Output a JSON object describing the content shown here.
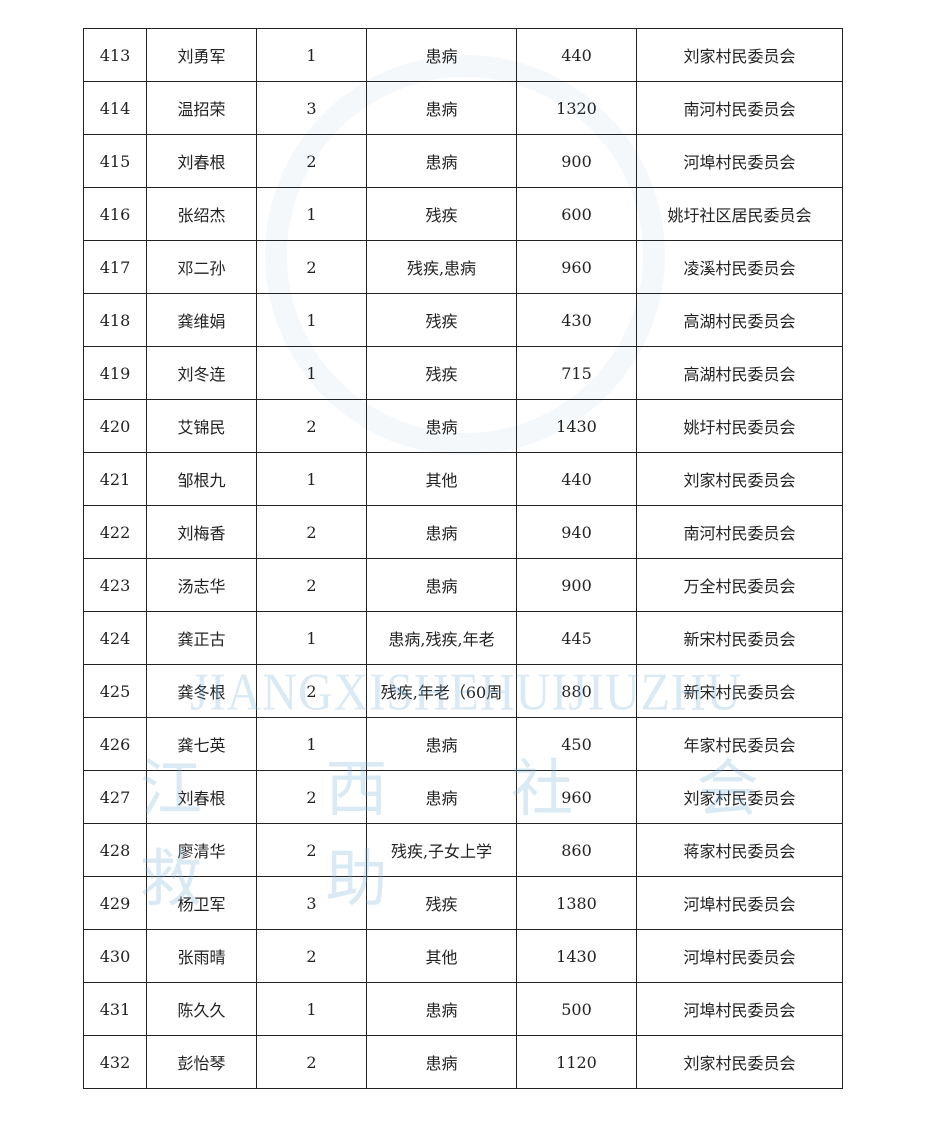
{
  "watermark": {
    "latin": "JIANGXISHEHUIJIUZHU",
    "chinese": "江 西 社 会 救 助"
  },
  "rows": [
    [
      "413",
      "刘勇军",
      "1",
      "患病",
      "440",
      "刘家村民委员会"
    ],
    [
      "414",
      "温招荣",
      "3",
      "患病",
      "1320",
      "南河村民委员会"
    ],
    [
      "415",
      "刘春根",
      "2",
      "患病",
      "900",
      "河埠村民委员会"
    ],
    [
      "416",
      "张绍杰",
      "1",
      "残疾",
      "600",
      "姚圩社区居民委员会"
    ],
    [
      "417",
      "邓二孙",
      "2",
      "残疾,患病",
      "960",
      "凌溪村民委员会"
    ],
    [
      "418",
      "龚维娟",
      "1",
      "残疾",
      "430",
      "高湖村民委员会"
    ],
    [
      "419",
      "刘冬连",
      "1",
      "残疾",
      "715",
      "高湖村民委员会"
    ],
    [
      "420",
      "艾锦民",
      "2",
      "患病",
      "1430",
      "姚圩村民委员会"
    ],
    [
      "421",
      "邹根九",
      "1",
      "其他",
      "440",
      "刘家村民委员会"
    ],
    [
      "422",
      "刘梅香",
      "2",
      "患病",
      "940",
      "南河村民委员会"
    ],
    [
      "423",
      "汤志华",
      "2",
      "患病",
      "900",
      "万全村民委员会"
    ],
    [
      "424",
      "龚正古",
      "1",
      "患病,残疾,年老",
      "445",
      "新宋村民委员会"
    ],
    [
      "425",
      "龚冬根",
      "2",
      "残疾,年老（60周",
      "880",
      "新宋村民委员会"
    ],
    [
      "426",
      "龚七英",
      "1",
      "患病",
      "450",
      "年家村民委员会"
    ],
    [
      "427",
      "刘春根",
      "2",
      "患病",
      "960",
      "刘家村民委员会"
    ],
    [
      "428",
      "廖清华",
      "2",
      "残疾,子女上学",
      "860",
      "蒋家村民委员会"
    ],
    [
      "429",
      "杨卫军",
      "3",
      "残疾",
      "1380",
      "河埠村民委员会"
    ],
    [
      "430",
      "张雨晴",
      "2",
      "其他",
      "1430",
      "河埠村民委员会"
    ],
    [
      "431",
      "陈久久",
      "1",
      "患病",
      "500",
      "河埠村民委员会"
    ],
    [
      "432",
      "彭怡琴",
      "2",
      "患病",
      "1120",
      "刘家村民委员会"
    ]
  ]
}
